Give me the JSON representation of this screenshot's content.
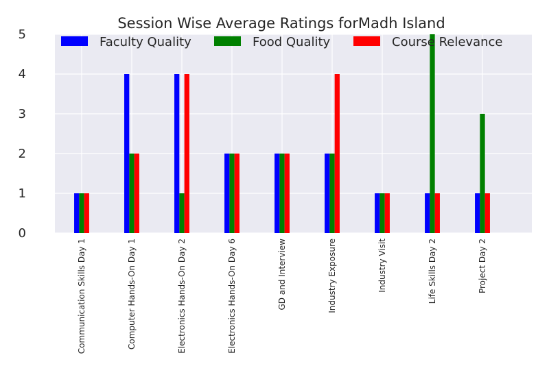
{
  "chart_data": {
    "type": "bar",
    "title": "Session Wise Average Ratings forMadh Island",
    "xlabel": "",
    "ylabel": "",
    "ylim": [
      0,
      5
    ],
    "yticks": [
      0,
      1,
      2,
      3,
      4,
      5
    ],
    "grid": true,
    "legend_position": "top",
    "categories": [
      "Communication Skills Day 1",
      "Computer Hands-On Day 1",
      "Electronics Hands-On Day 2",
      "Electronics Hands-On Day 6",
      "GD and Interview",
      "Industry Exposure",
      "Industry Visit",
      "Life Skills Day 2",
      "Project Day 2"
    ],
    "series": [
      {
        "name": "Faculty Quality",
        "color": "#0000ff",
        "values": [
          1,
          4,
          4,
          2,
          2,
          2,
          1,
          1,
          1
        ]
      },
      {
        "name": "Food Quality",
        "color": "#008000",
        "values": [
          1,
          2,
          1,
          2,
          2,
          2,
          1,
          5,
          3
        ]
      },
      {
        "name": "Course Relevance",
        "color": "#ff0000",
        "values": [
          1,
          2,
          4,
          2,
          2,
          4,
          1,
          1,
          1
        ]
      }
    ]
  }
}
